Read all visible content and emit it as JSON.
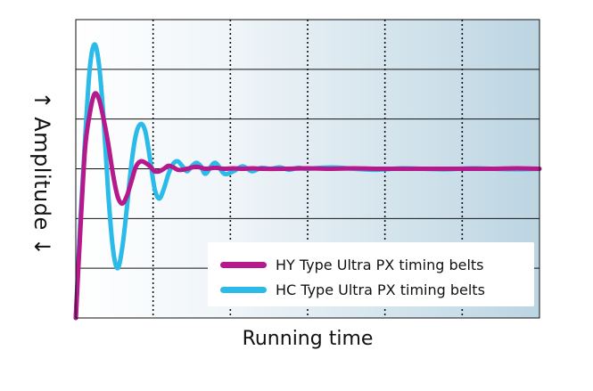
{
  "chart_data": {
    "type": "line",
    "title": "",
    "xlabel": "Running time",
    "ylabel": "↑ Amplitude ↓",
    "axis_ticks": "none",
    "grid": "horizontal solid lines, vertical dotted lines",
    "background": "white-to-light-blue horizontal gradient",
    "xlim": [
      0,
      100
    ],
    "ylim": [
      -3,
      3
    ],
    "legend_position": "bottom-right",
    "series": [
      {
        "name": "HY Type Ultra PX timing belts",
        "color": "#b5198b",
        "x": [
          0,
          1,
          2,
          3,
          4,
          5,
          6,
          7,
          8,
          9,
          10,
          11,
          12,
          13,
          14,
          15,
          16,
          17,
          18,
          19,
          20,
          21,
          22,
          23,
          24,
          26,
          28,
          30,
          32,
          34,
          36,
          38,
          40,
          45,
          50,
          55,
          60,
          65,
          70,
          75,
          80,
          85,
          90,
          95,
          100
        ],
        "y": [
          -3,
          -1.2,
          0.4,
          1.1,
          1.5,
          1.4,
          1.0,
          0.5,
          -0.1,
          -0.55,
          -0.7,
          -0.55,
          -0.25,
          0.05,
          0.15,
          0.12,
          0.05,
          -0.05,
          -0.05,
          0.0,
          0.06,
          0.03,
          -0.02,
          -0.02,
          0.0,
          0.04,
          0.0,
          0.02,
          0.0,
          0.01,
          0.0,
          0.01,
          0.0,
          0.0,
          0.01,
          0.0,
          0.01,
          0.0,
          0.0,
          0.0,
          0.0,
          0.0,
          0.0,
          0.01,
          0.0
        ]
      },
      {
        "name": "HC Type Ultra PX timing belts",
        "color": "#2bbbe8",
        "x": [
          0,
          1,
          2,
          3,
          4,
          5,
          6,
          7,
          8,
          9,
          10,
          11,
          12,
          13,
          14,
          15,
          16,
          17,
          18,
          19,
          20,
          21,
          22,
          23,
          24,
          25,
          26,
          27,
          28,
          30,
          32,
          34,
          36,
          38,
          40,
          42,
          44,
          46,
          48,
          50,
          55,
          60,
          65,
          70,
          75,
          80,
          85,
          90,
          95,
          100
        ],
        "y": [
          -3,
          -1.0,
          0.6,
          2.0,
          2.5,
          2.1,
          1.0,
          -0.5,
          -1.6,
          -2.0,
          -1.6,
          -0.8,
          0.1,
          0.7,
          0.9,
          0.75,
          0.2,
          -0.4,
          -0.6,
          -0.4,
          -0.1,
          0.1,
          0.15,
          0.05,
          -0.05,
          0.05,
          0.12,
          0.05,
          -0.1,
          0.12,
          -0.1,
          -0.05,
          0.05,
          -0.05,
          0.02,
          0.0,
          0.03,
          -0.02,
          0.02,
          0.0,
          0.03,
          0.0,
          -0.02,
          0.01,
          0.0,
          -0.01,
          0.01,
          0.0,
          -0.01,
          0.0
        ]
      }
    ]
  }
}
